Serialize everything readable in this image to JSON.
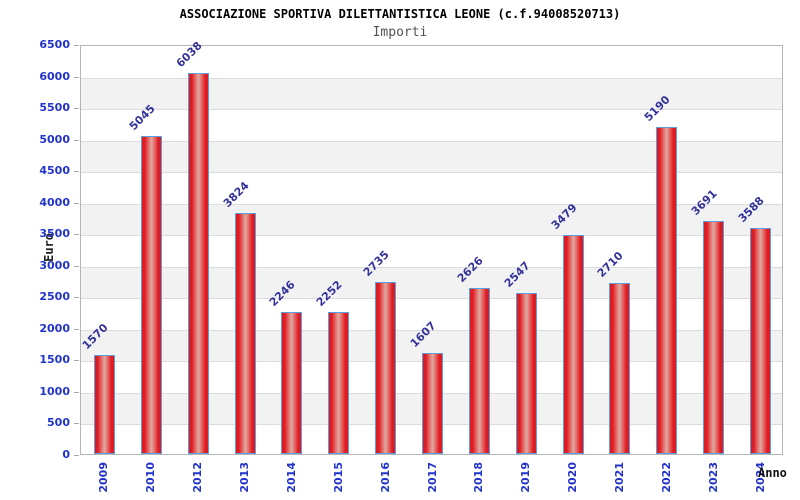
{
  "chart_data": {
    "type": "bar",
    "title": "ASSOCIAZIONE SPORTIVA DILETTANTISTICA LEONE (c.f.94008520713)",
    "subtitle": "Importi",
    "xlabel": "Anno",
    "ylabel": "Euro",
    "categories": [
      "2009",
      "2010",
      "2012",
      "2013",
      "2014",
      "2015",
      "2016",
      "2017",
      "2018",
      "2019",
      "2020",
      "2021",
      "2022",
      "2023",
      "2024"
    ],
    "values": [
      1570,
      5045,
      6038,
      3824,
      2246,
      2252,
      2735,
      1607,
      2626,
      2547,
      3479,
      2710,
      5190,
      3691,
      3588
    ],
    "ylim": [
      0,
      6500
    ],
    "ytick_step": 500,
    "ytick_labels": [
      "0",
      "500",
      "1000",
      "1500",
      "2000",
      "2500",
      "3000",
      "3500",
      "4000",
      "4500",
      "5000",
      "5500",
      "6000",
      "6500"
    ],
    "grid": true,
    "legend": "none",
    "colors": {
      "tick_label_blue": "#2233cc",
      "value_label_navy": "#333399",
      "bar_red": "#dd1c23",
      "bar_red_mid": "#e8716e",
      "bar_center_light": "#d9aba4",
      "bar_border_blue": "#5aa0de",
      "band_gray": "#f2f2f2",
      "gridline_gray": "#dcdcdc",
      "plot_border_gray": "#b5b5b5",
      "tick_mark_gray": "#aaaaaa",
      "title_black": "#000000",
      "subtitle_gray": "#555555"
    }
  }
}
